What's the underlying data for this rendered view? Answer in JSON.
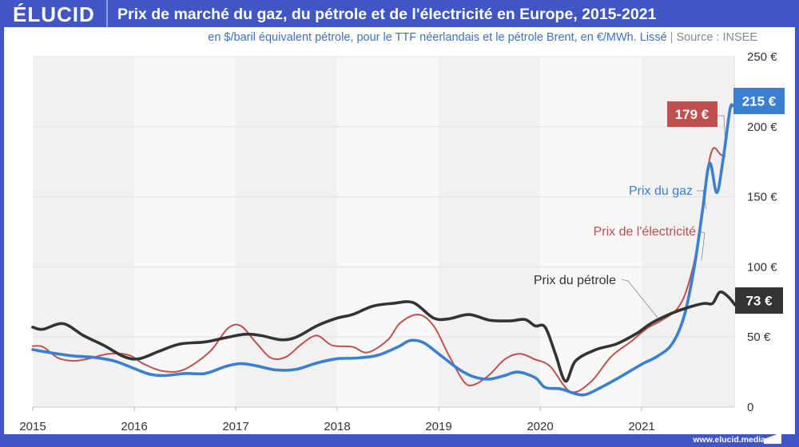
{
  "header": {
    "logo": "ÉLUCID",
    "title": "Prix de marché du gaz, du pétrole et de l'électricité en Europe, 2015-2021"
  },
  "subtitle": {
    "text": "en $/baril équivalent pétrole, pour le TTF néerlandais et le pétrole Brent, en €/MWh. Lissé",
    "separator": "|",
    "source": "Source : INSEE"
  },
  "footer": {
    "link": "www.elucid.media"
  },
  "colors": {
    "brand": "#3f56c4",
    "gas": "#3a7fd0",
    "electricity": "#c0504d",
    "oil": "#333333",
    "band_dark": "#f1f1f1",
    "band_light": "#f8f8f8"
  },
  "chart_data": {
    "type": "line",
    "title": "Prix de marché du gaz, du pétrole et de l'électricité en Europe, 2015-2021",
    "subtitle": "en $/baril équivalent pétrole, pour le TTF néerlandais et le pétrole Brent, en €/MWh. Lissé | Source : INSEE",
    "xlabel": "",
    "ylabel": "",
    "xlim": [
      2015,
      2021.92
    ],
    "ylim": [
      0,
      250
    ],
    "x_ticks": [
      "2015",
      "2016",
      "2017",
      "2018",
      "2019",
      "2020",
      "2021"
    ],
    "y_ticks": [
      "0",
      "50 €",
      "100 €",
      "150 €",
      "200 €",
      "250 €"
    ],
    "y_tick_values": [
      0,
      50,
      100,
      150,
      200,
      250
    ],
    "y_axis_position": "right",
    "grid": true,
    "alternating_year_bands": true,
    "series": [
      {
        "name": "Prix du gaz",
        "key": "gas",
        "end_label": "215 €",
        "points": [
          [
            2015.0,
            41
          ],
          [
            2015.2,
            38.5
          ],
          [
            2015.4,
            36.5
          ],
          [
            2015.6,
            35.5
          ],
          [
            2015.8,
            33
          ],
          [
            2016.0,
            27.5
          ],
          [
            2016.15,
            23.5
          ],
          [
            2016.3,
            22.5
          ],
          [
            2016.5,
            24
          ],
          [
            2016.7,
            24
          ],
          [
            2016.9,
            29
          ],
          [
            2017.05,
            31
          ],
          [
            2017.2,
            29.5
          ],
          [
            2017.4,
            26.5
          ],
          [
            2017.6,
            27
          ],
          [
            2017.8,
            31.5
          ],
          [
            2018.0,
            34.5
          ],
          [
            2018.2,
            35
          ],
          [
            2018.4,
            37
          ],
          [
            2018.6,
            43
          ],
          [
            2018.72,
            47.5
          ],
          [
            2018.85,
            46
          ],
          [
            2019.0,
            38
          ],
          [
            2019.2,
            27
          ],
          [
            2019.35,
            21.5
          ],
          [
            2019.5,
            20
          ],
          [
            2019.65,
            22.5
          ],
          [
            2019.78,
            25
          ],
          [
            2019.95,
            21
          ],
          [
            2020.05,
            14
          ],
          [
            2020.2,
            13
          ],
          [
            2020.35,
            9.5
          ],
          [
            2020.45,
            9
          ],
          [
            2020.6,
            14
          ],
          [
            2020.8,
            22
          ],
          [
            2021.0,
            30.5
          ],
          [
            2021.15,
            36
          ],
          [
            2021.3,
            45
          ],
          [
            2021.42,
            65
          ],
          [
            2021.52,
            100
          ],
          [
            2021.6,
            140
          ],
          [
            2021.67,
            174
          ],
          [
            2021.74,
            153
          ],
          [
            2021.8,
            175
          ],
          [
            2021.87,
            212
          ],
          [
            2021.9,
            215
          ]
        ]
      },
      {
        "name": "Prix de l'électricité",
        "key": "electricity",
        "end_label": "179 €",
        "points": [
          [
            2015.0,
            43.5
          ],
          [
            2015.1,
            43
          ],
          [
            2015.25,
            35
          ],
          [
            2015.4,
            33
          ],
          [
            2015.55,
            34.5
          ],
          [
            2015.75,
            38
          ],
          [
            2015.95,
            37
          ],
          [
            2016.1,
            30.5
          ],
          [
            2016.3,
            25.5
          ],
          [
            2016.5,
            27
          ],
          [
            2016.75,
            40
          ],
          [
            2016.92,
            56
          ],
          [
            2017.05,
            58
          ],
          [
            2017.2,
            46
          ],
          [
            2017.35,
            35
          ],
          [
            2017.5,
            36
          ],
          [
            2017.65,
            45
          ],
          [
            2017.8,
            51
          ],
          [
            2017.95,
            44
          ],
          [
            2018.15,
            43
          ],
          [
            2018.3,
            39
          ],
          [
            2018.5,
            48
          ],
          [
            2018.62,
            60
          ],
          [
            2018.8,
            66
          ],
          [
            2018.95,
            58
          ],
          [
            2019.1,
            37
          ],
          [
            2019.25,
            18
          ],
          [
            2019.35,
            16
          ],
          [
            2019.5,
            23
          ],
          [
            2019.65,
            34
          ],
          [
            2019.8,
            38
          ],
          [
            2019.95,
            34
          ],
          [
            2020.1,
            29
          ],
          [
            2020.3,
            11
          ],
          [
            2020.5,
            18
          ],
          [
            2020.7,
            36
          ],
          [
            2020.9,
            47
          ],
          [
            2021.05,
            56
          ],
          [
            2021.2,
            62
          ],
          [
            2021.35,
            70
          ],
          [
            2021.45,
            85
          ],
          [
            2021.55,
            115
          ],
          [
            2021.63,
            160
          ],
          [
            2021.7,
            184
          ],
          [
            2021.78,
            180
          ],
          [
            2021.82,
            179
          ]
        ]
      },
      {
        "name": "Prix du pétrole",
        "key": "oil",
        "end_label": "73 €",
        "points": [
          [
            2015.0,
            57
          ],
          [
            2015.1,
            55.5
          ],
          [
            2015.3,
            59.5
          ],
          [
            2015.5,
            51
          ],
          [
            2015.7,
            44
          ],
          [
            2015.9,
            36
          ],
          [
            2016.05,
            34.5
          ],
          [
            2016.25,
            40
          ],
          [
            2016.45,
            45
          ],
          [
            2016.7,
            46.5
          ],
          [
            2016.9,
            49.5
          ],
          [
            2017.1,
            52
          ],
          [
            2017.25,
            51
          ],
          [
            2017.45,
            48
          ],
          [
            2017.6,
            50
          ],
          [
            2017.8,
            58
          ],
          [
            2018.0,
            63.5
          ],
          [
            2018.15,
            66
          ],
          [
            2018.35,
            72
          ],
          [
            2018.55,
            74
          ],
          [
            2018.75,
            74.5
          ],
          [
            2018.95,
            63.5
          ],
          [
            2019.1,
            63
          ],
          [
            2019.3,
            66
          ],
          [
            2019.5,
            62
          ],
          [
            2019.7,
            61.5
          ],
          [
            2019.85,
            62.5
          ],
          [
            2019.95,
            58
          ],
          [
            2020.05,
            57
          ],
          [
            2020.15,
            38
          ],
          [
            2020.25,
            18.5
          ],
          [
            2020.35,
            33
          ],
          [
            2020.55,
            41
          ],
          [
            2020.75,
            45
          ],
          [
            2020.95,
            52.5
          ],
          [
            2021.1,
            60
          ],
          [
            2021.3,
            67
          ],
          [
            2021.5,
            72
          ],
          [
            2021.62,
            74
          ],
          [
            2021.7,
            74
          ],
          [
            2021.77,
            82
          ],
          [
            2021.85,
            79
          ],
          [
            2021.92,
            73
          ]
        ]
      }
    ],
    "annotations": [
      {
        "text": "Prix du gaz",
        "series": "gas"
      },
      {
        "text": "Prix de l'électricité",
        "series": "electricity"
      },
      {
        "text": "Prix du pétrole",
        "series": "oil"
      }
    ],
    "end_badges": [
      {
        "series": "gas",
        "label": "215 €",
        "value": 215
      },
      {
        "series": "electricity",
        "label": "179 €",
        "value": 179
      },
      {
        "series": "oil",
        "label": "73 €",
        "value": 73
      }
    ],
    "legend": "inline-labels"
  }
}
